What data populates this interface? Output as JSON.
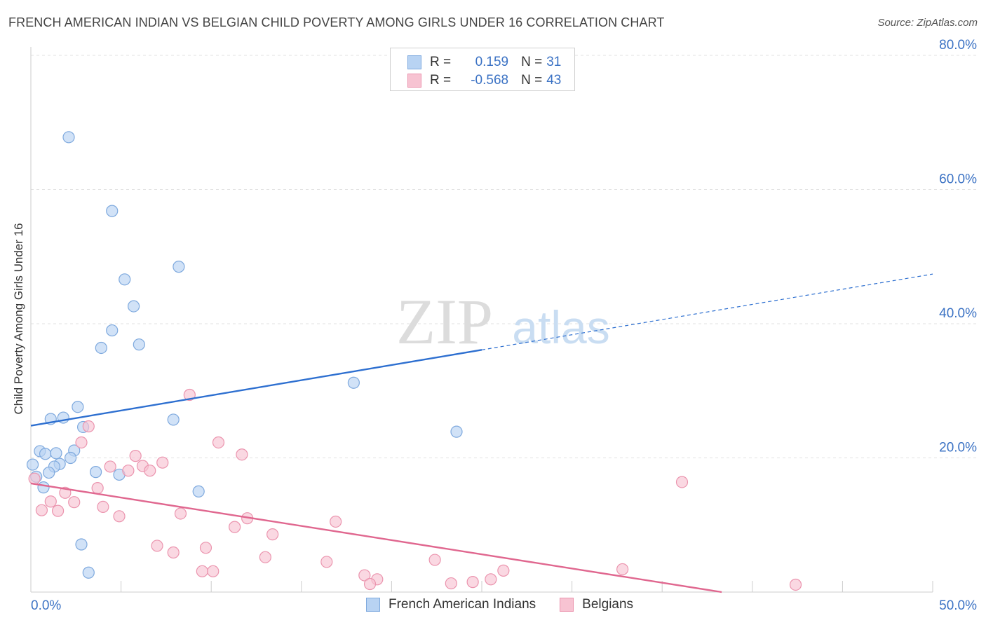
{
  "title": "FRENCH AMERICAN INDIAN VS BELGIAN CHILD POVERTY AMONG GIRLS UNDER 16 CORRELATION CHART",
  "source": "Source: ZipAtlas.com",
  "watermark": {
    "zip": "ZIP",
    "atlas": "atlas"
  },
  "legend": {
    "rows": [
      {
        "r_label": "R =",
        "r_value": "0.159",
        "n_label": "N =",
        "n_value": "31"
      },
      {
        "r_label": "R =",
        "r_value": "-0.568",
        "n_label": "N =",
        "n_value": "43"
      }
    ]
  },
  "colors": {
    "blue_fill": "#b8d3f3",
    "blue_stroke": "#7ea9de",
    "blue_line": "#2d6fd0",
    "pink_fill": "#f7c3d2",
    "pink_stroke": "#eb94ae",
    "pink_line": "#e0678f",
    "axis_label": "#3b72c4",
    "grid": "#e2e2e2"
  },
  "chart_data": {
    "type": "scatter",
    "title": "FRENCH AMERICAN INDIAN VS BELGIAN CHILD POVERTY AMONG GIRLS UNDER 16 CORRELATION CHART",
    "xlabel": "",
    "ylabel": "Child Poverty Among Girls Under 16",
    "xlim": [
      0,
      50
    ],
    "ylim": [
      0,
      80
    ],
    "x_tick_labels": [
      "0.0%",
      "50.0%"
    ],
    "y_ticks": [
      20,
      40,
      60,
      80
    ],
    "y_tick_labels": [
      "20.0%",
      "40.0%",
      "60.0%",
      "80.0%"
    ],
    "grid": true,
    "series": [
      {
        "name": "French American Indians",
        "color": "#7ea9de",
        "r": 0.159,
        "n": 31,
        "trend": {
          "x0": 0,
          "y0": 24.8,
          "x1": 25,
          "y1": 36.1,
          "dash_to_x": 50,
          "dash_to_y": 47.4
        },
        "points": [
          {
            "x": 2.1,
            "y": 67.8
          },
          {
            "x": 4.5,
            "y": 56.8
          },
          {
            "x": 8.2,
            "y": 48.5
          },
          {
            "x": 5.2,
            "y": 46.6
          },
          {
            "x": 5.7,
            "y": 42.6
          },
          {
            "x": 4.5,
            "y": 39.0
          },
          {
            "x": 3.9,
            "y": 36.4
          },
          {
            "x": 6.0,
            "y": 36.9
          },
          {
            "x": 17.9,
            "y": 31.2
          },
          {
            "x": 2.6,
            "y": 27.6
          },
          {
            "x": 1.8,
            "y": 26.0
          },
          {
            "x": 1.1,
            "y": 25.8
          },
          {
            "x": 7.9,
            "y": 25.7
          },
          {
            "x": 2.9,
            "y": 24.6
          },
          {
            "x": 23.6,
            "y": 23.9
          },
          {
            "x": 0.5,
            "y": 21.0
          },
          {
            "x": 0.8,
            "y": 20.6
          },
          {
            "x": 1.4,
            "y": 20.7
          },
          {
            "x": 2.4,
            "y": 21.1
          },
          {
            "x": 2.2,
            "y": 20.0
          },
          {
            "x": 1.6,
            "y": 19.1
          },
          {
            "x": 1.3,
            "y": 18.7
          },
          {
            "x": 0.1,
            "y": 19.0
          },
          {
            "x": 1.0,
            "y": 17.8
          },
          {
            "x": 3.6,
            "y": 17.9
          },
          {
            "x": 4.9,
            "y": 17.5
          },
          {
            "x": 0.3,
            "y": 17.2
          },
          {
            "x": 0.7,
            "y": 15.6
          },
          {
            "x": 9.3,
            "y": 15.0
          },
          {
            "x": 2.8,
            "y": 7.1
          },
          {
            "x": 3.2,
            "y": 2.9
          }
        ]
      },
      {
        "name": "Belgians",
        "color": "#eb94ae",
        "r": -0.568,
        "n": 43,
        "trend": {
          "x0": 0,
          "y0": 16.2,
          "x1": 38.3,
          "y1": 0
        },
        "points": [
          {
            "x": 8.8,
            "y": 29.4
          },
          {
            "x": 3.2,
            "y": 24.7
          },
          {
            "x": 2.8,
            "y": 22.3
          },
          {
            "x": 10.4,
            "y": 22.3
          },
          {
            "x": 11.7,
            "y": 20.5
          },
          {
            "x": 5.8,
            "y": 20.3
          },
          {
            "x": 7.3,
            "y": 19.3
          },
          {
            "x": 4.4,
            "y": 18.7
          },
          {
            "x": 6.2,
            "y": 18.8
          },
          {
            "x": 5.4,
            "y": 18.1
          },
          {
            "x": 6.6,
            "y": 18.1
          },
          {
            "x": 0.2,
            "y": 16.9
          },
          {
            "x": 36.1,
            "y": 16.4
          },
          {
            "x": 3.7,
            "y": 15.5
          },
          {
            "x": 1.9,
            "y": 14.8
          },
          {
            "x": 1.1,
            "y": 13.5
          },
          {
            "x": 2.4,
            "y": 13.4
          },
          {
            "x": 4.0,
            "y": 12.7
          },
          {
            "x": 0.6,
            "y": 12.2
          },
          {
            "x": 1.5,
            "y": 12.1
          },
          {
            "x": 8.3,
            "y": 11.7
          },
          {
            "x": 4.9,
            "y": 11.3
          },
          {
            "x": 12.0,
            "y": 11.0
          },
          {
            "x": 16.9,
            "y": 10.5
          },
          {
            "x": 11.3,
            "y": 9.7
          },
          {
            "x": 13.4,
            "y": 8.6
          },
          {
            "x": 7.0,
            "y": 6.9
          },
          {
            "x": 9.7,
            "y": 6.6
          },
          {
            "x": 7.9,
            "y": 5.9
          },
          {
            "x": 13.0,
            "y": 5.2
          },
          {
            "x": 16.4,
            "y": 4.5
          },
          {
            "x": 22.4,
            "y": 4.8
          },
          {
            "x": 26.2,
            "y": 3.2
          },
          {
            "x": 32.8,
            "y": 3.4
          },
          {
            "x": 9.5,
            "y": 3.1
          },
          {
            "x": 10.1,
            "y": 3.1
          },
          {
            "x": 18.5,
            "y": 2.5
          },
          {
            "x": 19.2,
            "y": 1.9
          },
          {
            "x": 25.5,
            "y": 1.9
          },
          {
            "x": 18.8,
            "y": 1.2
          },
          {
            "x": 23.3,
            "y": 1.3
          },
          {
            "x": 24.5,
            "y": 1.5
          },
          {
            "x": 42.4,
            "y": 1.1
          }
        ]
      }
    ]
  }
}
